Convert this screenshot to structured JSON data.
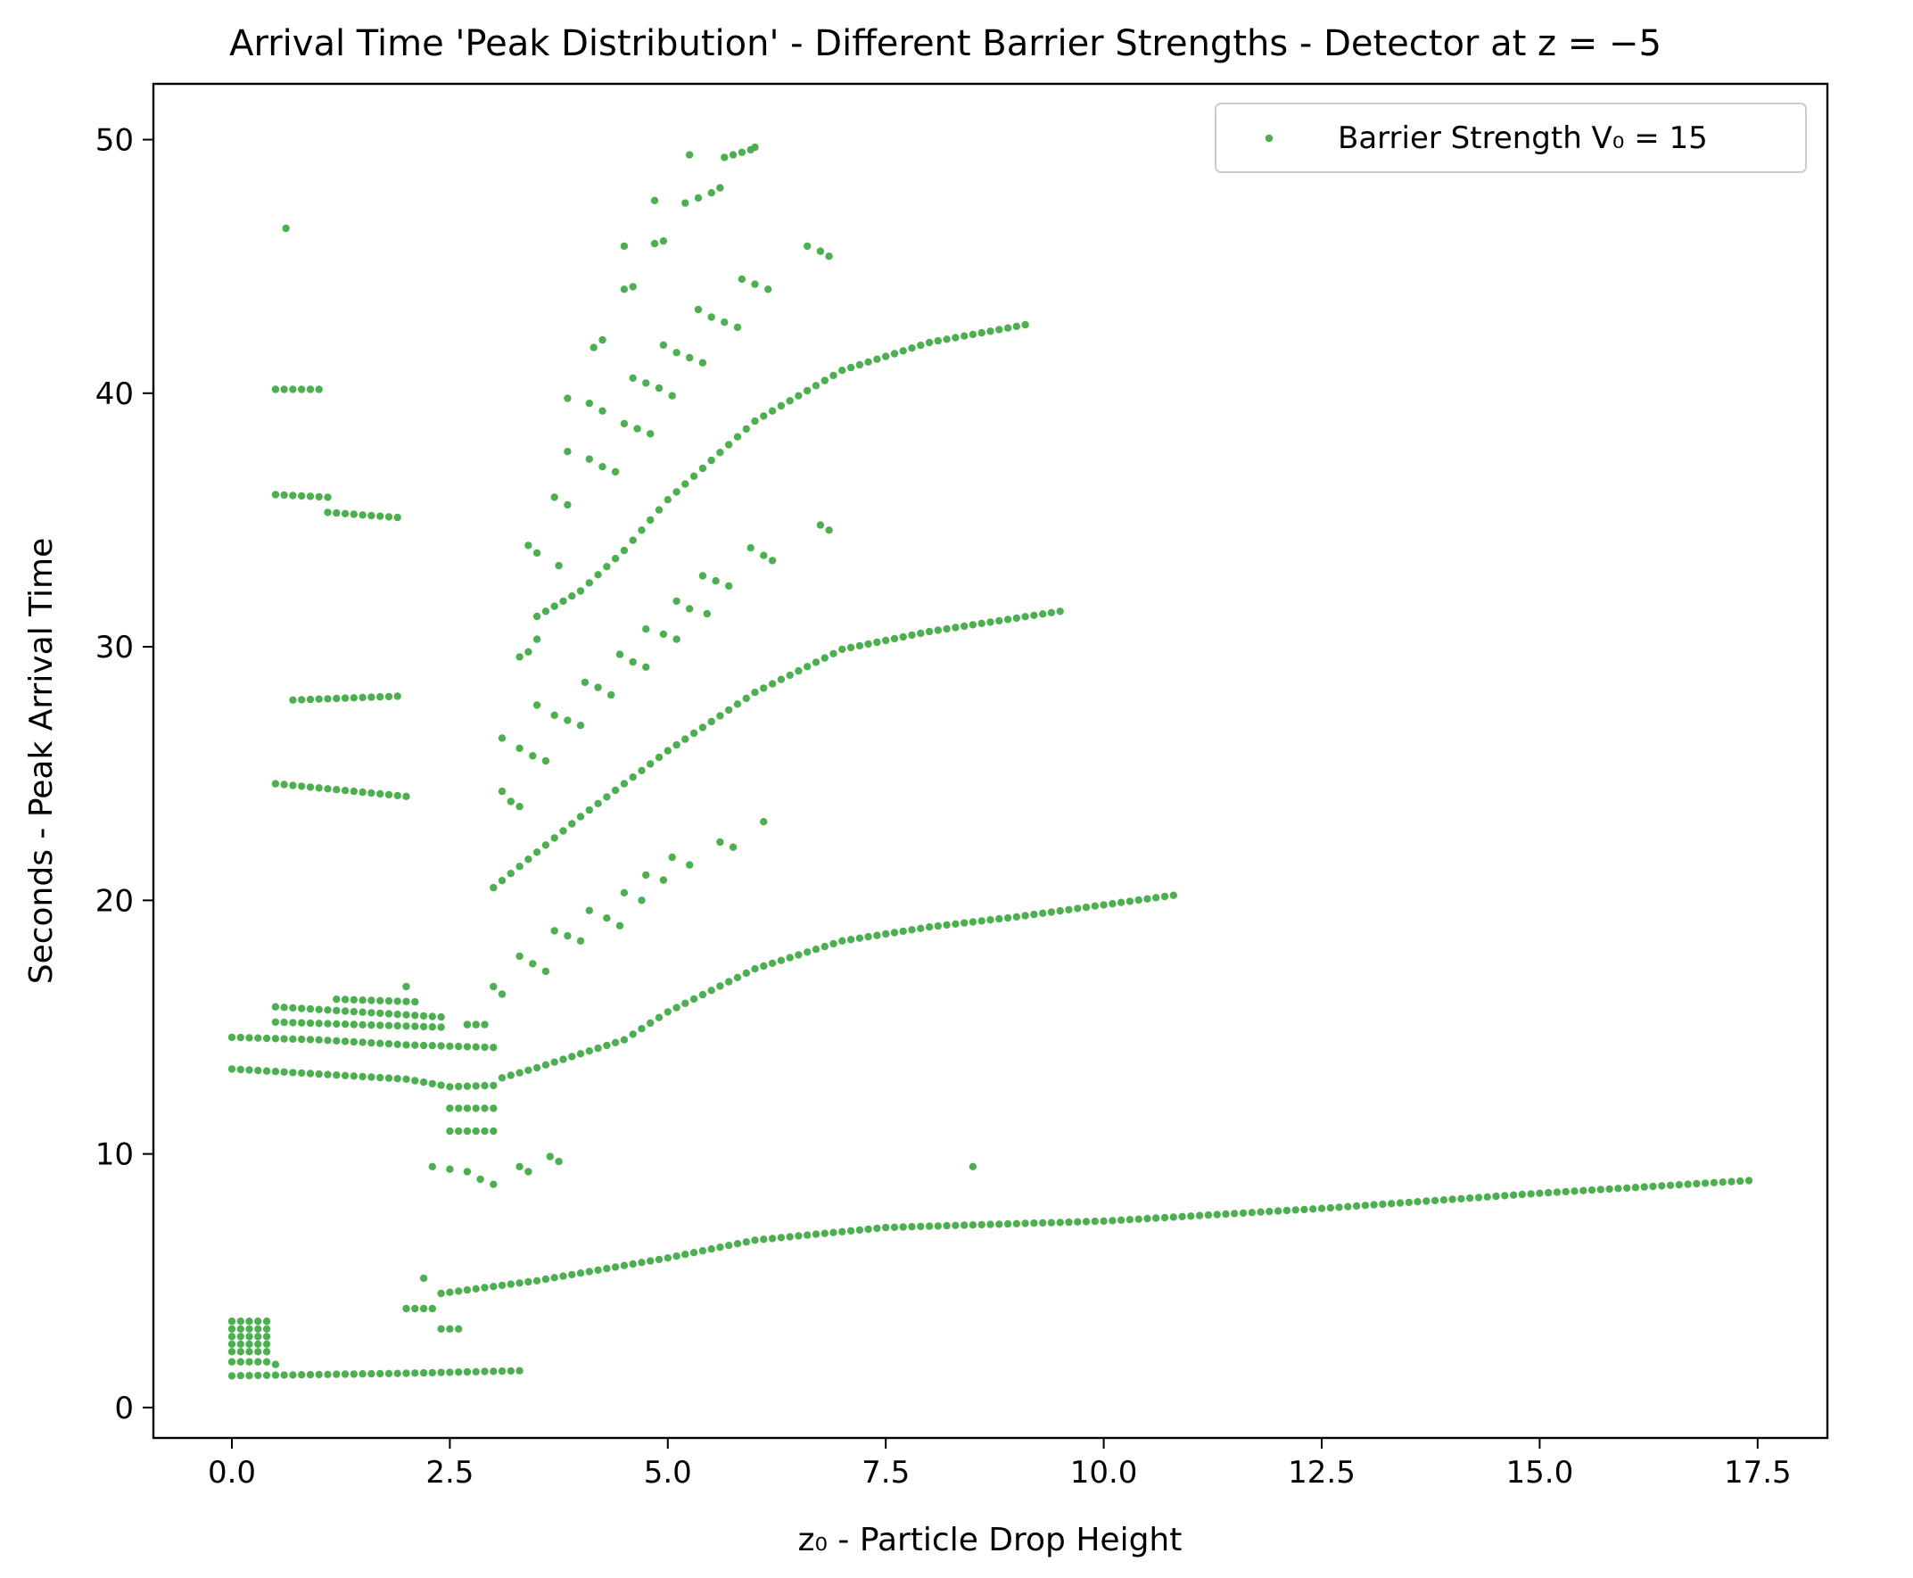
{
  "chart_data": {
    "type": "scatter",
    "title": "Arrival Time 'Peak Distribution' - Different Barrier Strengths - Detector at z = −5",
    "xlabel": "z₀ - Particle Drop Height",
    "ylabel": "Seconds - Peak Arrival Time",
    "xlim": [
      -0.9,
      18.3
    ],
    "ylim": [
      -1.2,
      52.2
    ],
    "xticks": [
      0.0,
      2.5,
      5.0,
      7.5,
      10.0,
      12.5,
      15.0,
      17.5
    ],
    "xtick_labels": [
      "0.0",
      "2.5",
      "5.0",
      "7.5",
      "10.0",
      "12.5",
      "15.0",
      "17.5"
    ],
    "yticks": [
      0,
      10,
      20,
      30,
      40,
      50
    ],
    "ytick_labels": [
      "0",
      "10",
      "20",
      "30",
      "40",
      "50"
    ],
    "grid": false,
    "legend_position": "top-right",
    "series": [
      {
        "name": "Barrier Strength V₀ = 15",
        "color": "#4caf50",
        "curves": [
          {
            "x_from": 0.0,
            "x_to": 3.3,
            "step": 0.1,
            "y": [
              [
                0.0,
                1.25
              ],
              [
                2.0,
                1.35
              ],
              [
                3.3,
                1.45
              ]
            ]
          },
          {
            "x_from": 2.4,
            "x_to": 17.4,
            "step": 0.1,
            "y": [
              [
                2.4,
                4.5
              ],
              [
                3.5,
                5.0
              ],
              [
                5.0,
                5.9
              ],
              [
                6.0,
                6.6
              ],
              [
                7.5,
                7.1
              ],
              [
                9.0,
                7.25
              ],
              [
                10.0,
                7.35
              ],
              [
                12.5,
                7.85
              ],
              [
                15.0,
                8.45
              ],
              [
                17.4,
                8.95
              ]
            ]
          },
          {
            "x_from": 3.1,
            "x_to": 10.8,
            "step": 0.1,
            "y": [
              [
                3.1,
                13.0
              ],
              [
                3.5,
                13.4
              ],
              [
                4.5,
                14.5
              ],
              [
                5.0,
                15.6
              ],
              [
                6.0,
                17.3
              ],
              [
                7.0,
                18.4
              ],
              [
                8.0,
                18.95
              ],
              [
                9.0,
                19.35
              ],
              [
                10.8,
                20.2
              ]
            ]
          },
          {
            "x_from": 3.0,
            "x_to": 9.5,
            "step": 0.1,
            "y": [
              [
                3.0,
                20.5
              ],
              [
                4.0,
                23.3
              ],
              [
                5.0,
                25.9
              ],
              [
                6.0,
                28.2
              ],
              [
                7.0,
                29.9
              ],
              [
                8.0,
                30.6
              ],
              [
                9.5,
                31.4
              ]
            ]
          },
          {
            "x_from": 3.5,
            "x_to": 9.1,
            "step": 0.1,
            "y": [
              [
                3.5,
                31.2
              ],
              [
                4.0,
                32.2
              ],
              [
                4.5,
                33.8
              ],
              [
                5.0,
                35.8
              ],
              [
                6.0,
                38.9
              ],
              [
                7.0,
                40.9
              ],
              [
                8.0,
                42.0
              ],
              [
                9.1,
                42.7
              ]
            ]
          },
          {
            "x_from": 0.0,
            "x_to": 3.0,
            "step": 0.1,
            "y": [
              [
                0.0,
                14.6
              ],
              [
                1.0,
                14.5
              ],
              [
                2.0,
                14.3
              ],
              [
                3.0,
                14.2
              ]
            ]
          },
          {
            "x_from": 0.0,
            "x_to": 3.0,
            "step": 0.1,
            "y": [
              [
                0.0,
                13.35
              ],
              [
                1.0,
                13.15
              ],
              [
                2.0,
                12.95
              ],
              [
                2.5,
                12.65
              ],
              [
                3.0,
                12.7
              ]
            ]
          },
          {
            "x_from": 0.5,
            "x_to": 2.0,
            "step": 0.1,
            "y": [
              [
                0.5,
                24.6
              ],
              [
                2.0,
                24.1
              ]
            ]
          },
          {
            "x_from": 0.5,
            "x_to": 1.1,
            "step": 0.1,
            "y": [
              [
                0.5,
                36.0
              ],
              [
                1.1,
                35.9
              ]
            ]
          },
          {
            "x_from": 1.1,
            "x_to": 1.9,
            "step": 0.1,
            "y": [
              [
                1.1,
                35.3
              ],
              [
                1.9,
                35.1
              ]
            ]
          },
          {
            "x_from": 0.7,
            "x_to": 1.9,
            "step": 0.1,
            "y": [
              [
                0.7,
                27.9
              ],
              [
                1.9,
                28.05
              ]
            ]
          },
          {
            "x_from": 0.5,
            "x_to": 1.0,
            "step": 0.1,
            "y": [
              [
                0.5,
                40.15
              ],
              [
                1.0,
                40.15
              ]
            ]
          },
          {
            "x_from": 0.5,
            "x_to": 2.4,
            "step": 0.1,
            "y": [
              [
                0.5,
                15.8
              ],
              [
                2.4,
                15.4
              ]
            ]
          },
          {
            "x_from": 0.5,
            "x_to": 2.4,
            "step": 0.1,
            "y": [
              [
                0.5,
                15.2
              ],
              [
                2.4,
                15.0
              ]
            ]
          },
          {
            "x_from": 1.2,
            "x_to": 2.1,
            "step": 0.1,
            "y": [
              [
                1.2,
                16.1
              ],
              [
                2.1,
                16.0
              ]
            ]
          }
        ],
        "clusters": [
          {
            "xs": [
              0.0,
              0.1,
              0.2,
              0.3,
              0.4
            ],
            "ys": [
              1.8,
              2.2,
              2.5,
              2.8,
              3.1,
              3.4
            ]
          },
          {
            "xs": [
              2.5,
              2.6,
              2.7,
              2.8,
              2.9,
              3.0
            ],
            "ys": [
              10.9,
              11.8
            ]
          },
          {
            "xs": [
              2.4,
              2.5,
              2.6
            ],
            "ys": [
              3.1
            ]
          },
          {
            "xs": [
              2.7,
              2.8
            ],
            "ys": [
              15.1
            ]
          }
        ],
        "points": [
          [
            0.62,
            46.5
          ],
          [
            0.5,
            1.7
          ],
          [
            2.2,
            5.1
          ],
          [
            2.0,
            3.9
          ],
          [
            2.1,
            3.9
          ],
          [
            2.2,
            3.9
          ],
          [
            2.3,
            3.9
          ],
          [
            2.3,
            9.5
          ],
          [
            2.5,
            9.4
          ],
          [
            2.7,
            9.3
          ],
          [
            2.85,
            9.0
          ],
          [
            3.0,
            8.8
          ],
          [
            3.3,
            9.5
          ],
          [
            3.4,
            9.3
          ],
          [
            3.65,
            9.9
          ],
          [
            3.75,
            9.7
          ],
          [
            8.5,
            9.5
          ],
          [
            2.0,
            16.6
          ],
          [
            2.7,
            15.1
          ],
          [
            2.8,
            15.1
          ],
          [
            2.9,
            15.1
          ],
          [
            3.0,
            16.6
          ],
          [
            3.1,
            16.3
          ],
          [
            3.3,
            17.8
          ],
          [
            3.45,
            17.5
          ],
          [
            3.6,
            17.2
          ],
          [
            3.7,
            18.8
          ],
          [
            3.85,
            18.6
          ],
          [
            4.0,
            18.4
          ],
          [
            4.1,
            19.6
          ],
          [
            4.3,
            19.3
          ],
          [
            4.45,
            19.0
          ],
          [
            4.5,
            20.3
          ],
          [
            4.7,
            20.0
          ],
          [
            4.75,
            21.0
          ],
          [
            4.95,
            20.8
          ],
          [
            5.05,
            21.7
          ],
          [
            5.25,
            21.4
          ],
          [
            5.6,
            22.3
          ],
          [
            5.75,
            22.1
          ],
          [
            6.1,
            23.1
          ],
          [
            3.1,
            24.3
          ],
          [
            3.2,
            23.9
          ],
          [
            3.3,
            23.7
          ],
          [
            3.1,
            26.4
          ],
          [
            3.3,
            26.0
          ],
          [
            3.45,
            25.7
          ],
          [
            3.6,
            25.5
          ],
          [
            3.5,
            27.7
          ],
          [
            3.7,
            27.3
          ],
          [
            3.85,
            27.1
          ],
          [
            4.0,
            26.9
          ],
          [
            4.05,
            28.6
          ],
          [
            4.2,
            28.4
          ],
          [
            4.35,
            28.1
          ],
          [
            4.45,
            29.7
          ],
          [
            4.6,
            29.4
          ],
          [
            4.75,
            29.2
          ],
          [
            4.75,
            30.7
          ],
          [
            4.95,
            30.5
          ],
          [
            5.1,
            30.3
          ],
          [
            5.1,
            31.8
          ],
          [
            5.25,
            31.5
          ],
          [
            5.45,
            31.3
          ],
          [
            5.4,
            32.8
          ],
          [
            5.55,
            32.6
          ],
          [
            5.7,
            32.4
          ],
          [
            5.95,
            33.9
          ],
          [
            6.1,
            33.6
          ],
          [
            6.2,
            33.4
          ],
          [
            6.75,
            34.8
          ],
          [
            6.85,
            34.6
          ],
          [
            3.3,
            29.6
          ],
          [
            3.4,
            29.8
          ],
          [
            3.5,
            30.3
          ],
          [
            3.4,
            34.0
          ],
          [
            3.5,
            33.7
          ],
          [
            3.75,
            33.2
          ],
          [
            3.7,
            35.9
          ],
          [
            3.85,
            35.6
          ],
          [
            3.85,
            37.7
          ],
          [
            4.1,
            37.4
          ],
          [
            4.25,
            37.1
          ],
          [
            4.4,
            36.9
          ],
          [
            3.85,
            39.8
          ],
          [
            4.1,
            39.6
          ],
          [
            4.25,
            39.3
          ],
          [
            4.5,
            38.8
          ],
          [
            4.65,
            38.6
          ],
          [
            4.8,
            38.4
          ],
          [
            4.6,
            40.6
          ],
          [
            4.75,
            40.4
          ],
          [
            4.9,
            40.2
          ],
          [
            5.05,
            39.9
          ],
          [
            4.15,
            41.8
          ],
          [
            4.25,
            42.1
          ],
          [
            4.95,
            41.9
          ],
          [
            5.1,
            41.6
          ],
          [
            5.25,
            41.4
          ],
          [
            5.4,
            41.2
          ],
          [
            5.35,
            43.3
          ],
          [
            5.5,
            43.0
          ],
          [
            5.65,
            42.8
          ],
          [
            5.8,
            42.6
          ],
          [
            4.5,
            44.1
          ],
          [
            4.6,
            44.2
          ],
          [
            5.85,
            44.5
          ],
          [
            6.0,
            44.3
          ],
          [
            6.15,
            44.1
          ],
          [
            4.5,
            45.8
          ],
          [
            4.85,
            45.9
          ],
          [
            4.95,
            46.0
          ],
          [
            6.6,
            45.8
          ],
          [
            6.75,
            45.6
          ],
          [
            6.85,
            45.4
          ],
          [
            4.85,
            47.6
          ],
          [
            5.2,
            47.5
          ],
          [
            5.35,
            47.7
          ],
          [
            5.5,
            47.9
          ],
          [
            5.6,
            48.1
          ],
          [
            5.25,
            49.4
          ],
          [
            5.65,
            49.3
          ],
          [
            5.75,
            49.4
          ],
          [
            5.85,
            49.5
          ],
          [
            5.95,
            49.6
          ],
          [
            6.0,
            49.7
          ]
        ]
      }
    ]
  }
}
